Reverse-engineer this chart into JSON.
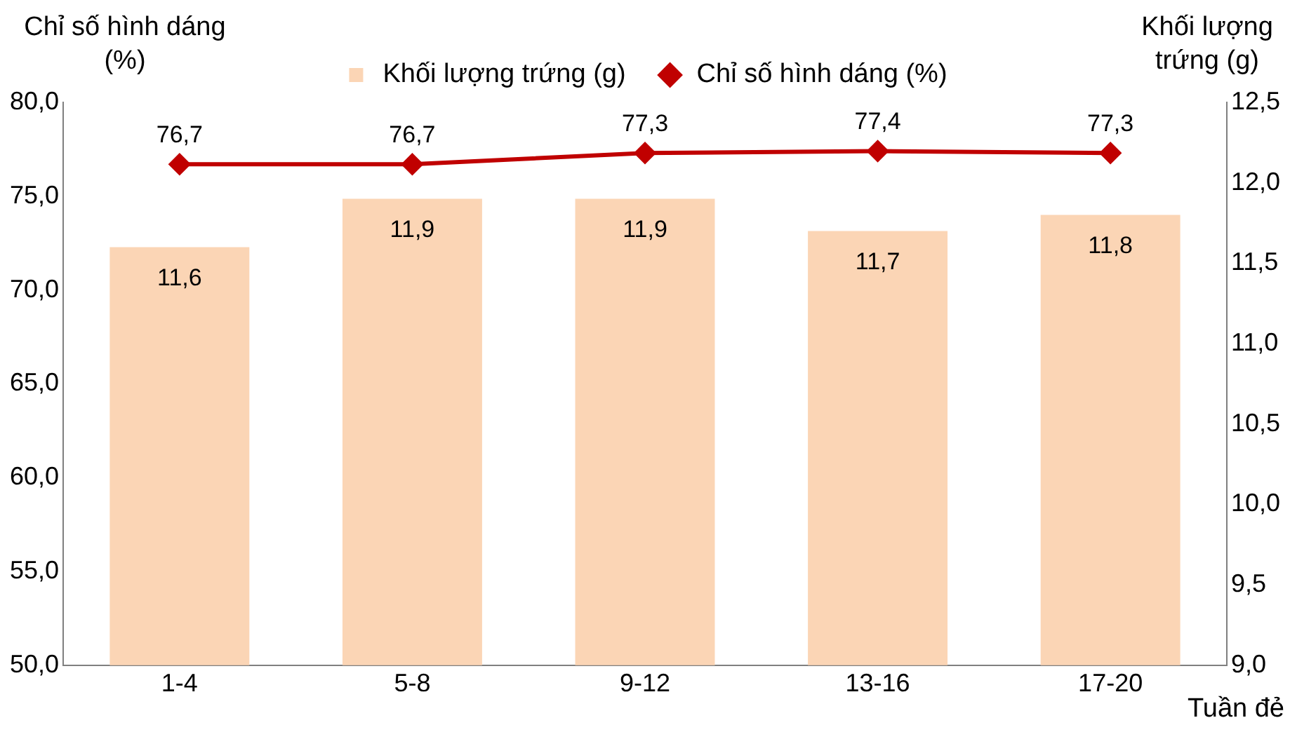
{
  "chart_data": {
    "type": "bar",
    "xlabel": "Tuần đẻ",
    "ylabel": "Chỉ số hình dáng (%)",
    "y2label": "Khối lượng trứng (g)",
    "categories": [
      "1-4",
      "5-8",
      "9-12",
      "13-16",
      "17-20"
    ],
    "series": [
      {
        "name": "Khối lượng trứng (g)",
        "axis": "y2",
        "color": "#fbd5b5",
        "values": [
          11.6,
          11.9,
          11.9,
          11.7,
          11.8
        ],
        "value_labels": [
          "11,6",
          "11,9",
          "11,9",
          "11,7",
          "11,8"
        ]
      },
      {
        "name": "Chỉ số hình dáng (%)",
        "type": "line",
        "color": "#c00000",
        "marker": "diamond",
        "values": [
          76.7,
          76.7,
          77.3,
          77.4,
          77.3
        ],
        "value_labels": [
          "76,7",
          "76,7",
          "77,3",
          "77,4",
          "77,3"
        ]
      }
    ],
    "ylim": [
      50,
      80
    ],
    "yticks": [
      {
        "value": 50,
        "label": "50,0"
      },
      {
        "value": 55,
        "label": "55,0"
      },
      {
        "value": 60,
        "label": "60,0"
      },
      {
        "value": 65,
        "label": "65,0"
      },
      {
        "value": 70,
        "label": "70,0"
      },
      {
        "value": 75,
        "label": "75,0"
      },
      {
        "value": 80,
        "label": "80,0"
      }
    ],
    "y2lim": [
      9,
      12.5
    ],
    "y2ticks": [
      {
        "value": 9,
        "label": "9,0"
      },
      {
        "value": 9.5,
        "label": "9,5"
      },
      {
        "value": 10,
        "label": "10,0"
      },
      {
        "value": 10.5,
        "label": "10,5"
      },
      {
        "value": 11,
        "label": "11,0"
      },
      {
        "value": 11.5,
        "label": "11,5"
      },
      {
        "value": 12,
        "label": "12,0"
      },
      {
        "value": 12.5,
        "label": "12,5"
      }
    ],
    "grid": false,
    "legend": "top"
  }
}
